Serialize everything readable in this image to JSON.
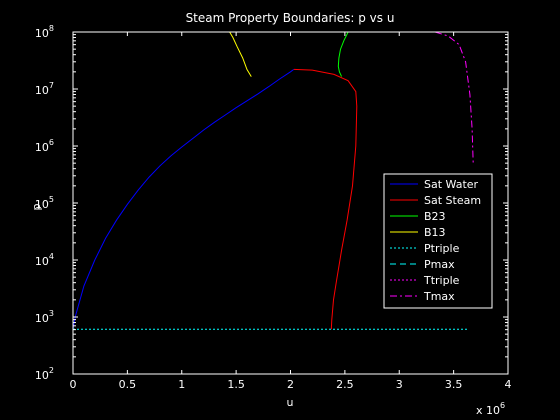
{
  "colors": {
    "background": "#000000",
    "axes_bg": "#000000",
    "foreground": "#ffffff",
    "sat_water": "#0000ff",
    "sat_steam": "#ff0000",
    "b23": "#00ff00",
    "b13": "#ffff00",
    "ptriple": "#00ffff",
    "pmax": "#00ffff",
    "ttriple": "#ff00ff",
    "tmax": "#ff00ff"
  },
  "chart_data": {
    "type": "line",
    "title": "Steam Property Boundaries: p vs u",
    "xlabel": "u",
    "ylabel": "p",
    "x_multiplier_label": "x 10",
    "x_multiplier_exponent": "6",
    "xlim": [
      0,
      4000000
    ],
    "ylim": [
      100,
      100000000
    ],
    "yscale": "log",
    "grid": false,
    "legend_position": "right",
    "x_ticks": [
      0,
      500000,
      1000000,
      1500000,
      2000000,
      2500000,
      3000000,
      3500000,
      4000000
    ],
    "x_tick_labels": [
      "0",
      "0.5",
      "1",
      "1.5",
      "2",
      "2.5",
      "3",
      "3.5",
      "4"
    ],
    "y_ticks": [
      100,
      1000,
      10000,
      100000,
      1000000,
      10000000,
      100000000
    ],
    "y_tick_base": "10",
    "y_tick_exponents": [
      "2",
      "3",
      "4",
      "5",
      "6",
      "7",
      "8"
    ],
    "series": [
      {
        "name": "Sat Water",
        "style": "solid",
        "color_key": "sat_water",
        "x": [
          0,
          20000,
          100000,
          200000,
          300000,
          400000,
          500000,
          600000,
          700000,
          800000,
          900000,
          1000000,
          1100000,
          1200000,
          1300000,
          1400000,
          1500000,
          1600000,
          1700000,
          1800000,
          1900000,
          2000000,
          2030000
        ],
        "y": [
          611,
          1000,
          3500,
          10000,
          24000,
          50000,
          95000,
          170000,
          285000,
          450000,
          670000,
          960000,
          1350000,
          1900000,
          2600000,
          3500000,
          4700000,
          6200000,
          8200000,
          11000000,
          15000000,
          20000000,
          22060000
        ]
      },
      {
        "name": "Sat Steam",
        "style": "solid",
        "color_key": "sat_steam",
        "x": [
          2030000,
          2200000,
          2400000,
          2530000,
          2600000,
          2610000,
          2600000,
          2570000,
          2520000,
          2470000,
          2420000,
          2395000,
          2380000,
          2375000
        ],
        "y": [
          22060000,
          21500000,
          18000000,
          14000000,
          9000000,
          5000000,
          1000000,
          200000,
          50000,
          15000,
          4000,
          2000,
          900,
          611
        ]
      },
      {
        "name": "B23",
        "style": "solid",
        "color_key": "b23",
        "x": [
          2470000,
          2450000,
          2440000,
          2445000,
          2460000,
          2490000,
          2530000
        ],
        "y": [
          16500000,
          20000000,
          25000000,
          35000000,
          50000000,
          70000000,
          100000000
        ]
      },
      {
        "name": "B13",
        "style": "solid",
        "color_key": "b13",
        "x": [
          1640000,
          1600000,
          1560000,
          1510000,
          1470000,
          1440000
        ],
        "y": [
          16500000,
          22000000,
          35000000,
          55000000,
          80000000,
          100000000
        ]
      },
      {
        "name": "Ptriple",
        "style": "dotted",
        "color_key": "ptriple",
        "x": [
          0,
          3640000
        ],
        "y": [
          611,
          611
        ]
      },
      {
        "name": "Pmax",
        "style": "dashed",
        "color_key": "pmax",
        "x": [
          0,
          3330000
        ],
        "y": [
          100000000,
          100000000
        ]
      },
      {
        "name": "Ttriple",
        "style": "dotted",
        "color_key": "ttriple",
        "x": [
          0,
          0
        ],
        "y": [
          611,
          611
        ]
      },
      {
        "name": "Tmax",
        "style": "dashdot",
        "color_key": "tmax",
        "x": [
          3330000,
          3450000,
          3550000,
          3610000,
          3650000,
          3670000,
          3680000
        ],
        "y": [
          100000000,
          85000000,
          60000000,
          30000000,
          8000000,
          2000000,
          500000
        ]
      }
    ]
  }
}
